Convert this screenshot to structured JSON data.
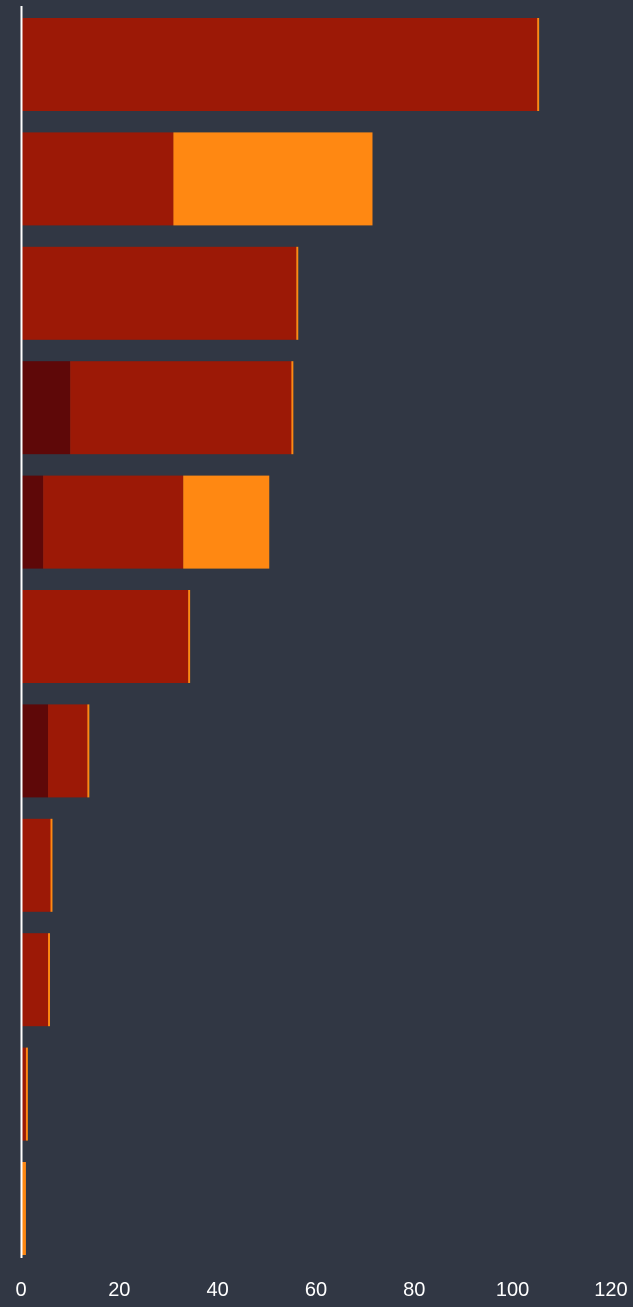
{
  "colors": {
    "background": "#313744",
    "axis": "#ffffff",
    "series_dark": "#5e0808",
    "series_mid": "#9c1906",
    "series_light": "#ff8812",
    "tick_text": "#ffffff"
  },
  "chart_data": {
    "type": "bar",
    "orientation": "horizontal",
    "stacked": true,
    "title": "",
    "xlabel": "",
    "ylabel": "",
    "xlim": [
      0,
      120
    ],
    "x_ticks": [
      "0",
      "20",
      "40",
      "60",
      "80",
      "100",
      "120"
    ],
    "grid": false,
    "legend": "none",
    "series": [
      {
        "color": "#5e0808",
        "values": [
          0,
          0,
          0,
          10,
          4.5,
          0,
          5.5,
          0,
          0,
          0,
          0
        ]
      },
      {
        "color": "#9c1906",
        "values": [
          105,
          31,
          56,
          45,
          28.5,
          34,
          8,
          6,
          5.5,
          1,
          0
        ]
      },
      {
        "color": "#ff8812",
        "values": [
          0.4,
          40.5,
          0.4,
          0.4,
          17.5,
          0.4,
          0.4,
          0.4,
          0.4,
          0.4,
          1
        ]
      }
    ]
  }
}
